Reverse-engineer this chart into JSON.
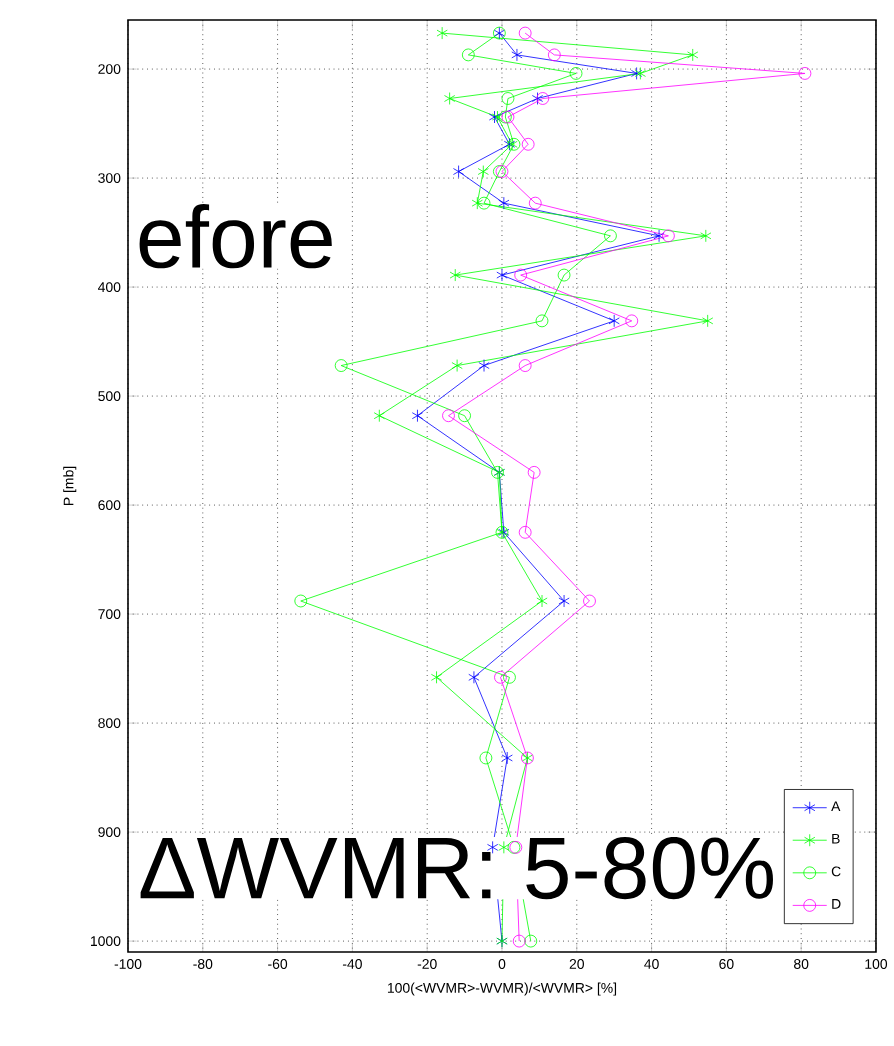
{
  "chart_data": {
    "type": "line",
    "xlabel": "100(<WVMR>-WVMR)/<WVMR> [%]",
    "ylabel": "P [mb]",
    "xlim": [
      -100,
      100
    ],
    "xticks": [
      -100,
      -80,
      -60,
      -40,
      -20,
      0,
      20,
      40,
      60,
      80,
      100
    ],
    "ylim": [
      1010,
      155
    ],
    "yticks": [
      200,
      300,
      400,
      500,
      600,
      700,
      800,
      900,
      1000
    ],
    "grid": true,
    "legend": "bottom right",
    "line_style": "solid",
    "annotations": [
      "efore",
      "ΔWVMR: 5-80%"
    ],
    "series": [
      {
        "name": "A",
        "color": "#0000ff",
        "marker": "cross",
        "x": [
          -0.7,
          4,
          36,
          9.5,
          -2,
          2,
          -11.6,
          0.5,
          42,
          0,
          30,
          -4.8,
          -22.6,
          -0.7,
          0.5,
          16.6,
          -7.5,
          1.4,
          -2.5,
          0
        ],
        "values": [
          167,
          187,
          204,
          227,
          244,
          269,
          294,
          323,
          353,
          389,
          431,
          472,
          518,
          570,
          625,
          688,
          758,
          832,
          914,
          1000
        ]
      },
      {
        "name": "B",
        "color": "#00ff00",
        "marker": "cross",
        "x": [
          -16,
          51,
          37,
          -14,
          -1.2,
          2.7,
          -5,
          -6.6,
          54.5,
          -12.5,
          55,
          -12,
          -32.8,
          -0.7,
          0,
          10.7,
          -17.5,
          6.8,
          0.5,
          0
        ],
        "values": [
          167,
          187,
          204,
          227,
          244,
          269,
          294,
          323,
          353,
          389,
          431,
          472,
          518,
          570,
          625,
          688,
          758,
          832,
          914,
          1000
        ]
      },
      {
        "name": "C",
        "color": "#00ff00",
        "marker": "circle",
        "x": [
          -0.7,
          -9,
          19.8,
          1.6,
          0.9,
          3.2,
          -0.7,
          -4.8,
          29,
          16.6,
          10.7,
          -43,
          -10,
          -1.2,
          0,
          -53.8,
          2,
          -4.3,
          3.2,
          7.7
        ],
        "values": [
          167,
          187,
          204,
          227,
          244,
          269,
          294,
          323,
          353,
          389,
          431,
          472,
          518,
          570,
          625,
          688,
          758,
          832,
          914,
          1000
        ]
      },
      {
        "name": "D",
        "color": "#ff00ff",
        "marker": "circle",
        "x": [
          6.2,
          14,
          81,
          10.9,
          1.6,
          7,
          0,
          8.9,
          44.5,
          5,
          34.7,
          6.2,
          -14.3,
          8.6,
          6.2,
          23.4,
          -0.4,
          6.8,
          3.7,
          4.6
        ],
        "values": [
          167,
          187,
          204,
          227,
          244,
          269,
          294,
          323,
          353,
          389,
          431,
          472,
          518,
          570,
          625,
          688,
          758,
          832,
          914,
          1000
        ]
      }
    ]
  }
}
